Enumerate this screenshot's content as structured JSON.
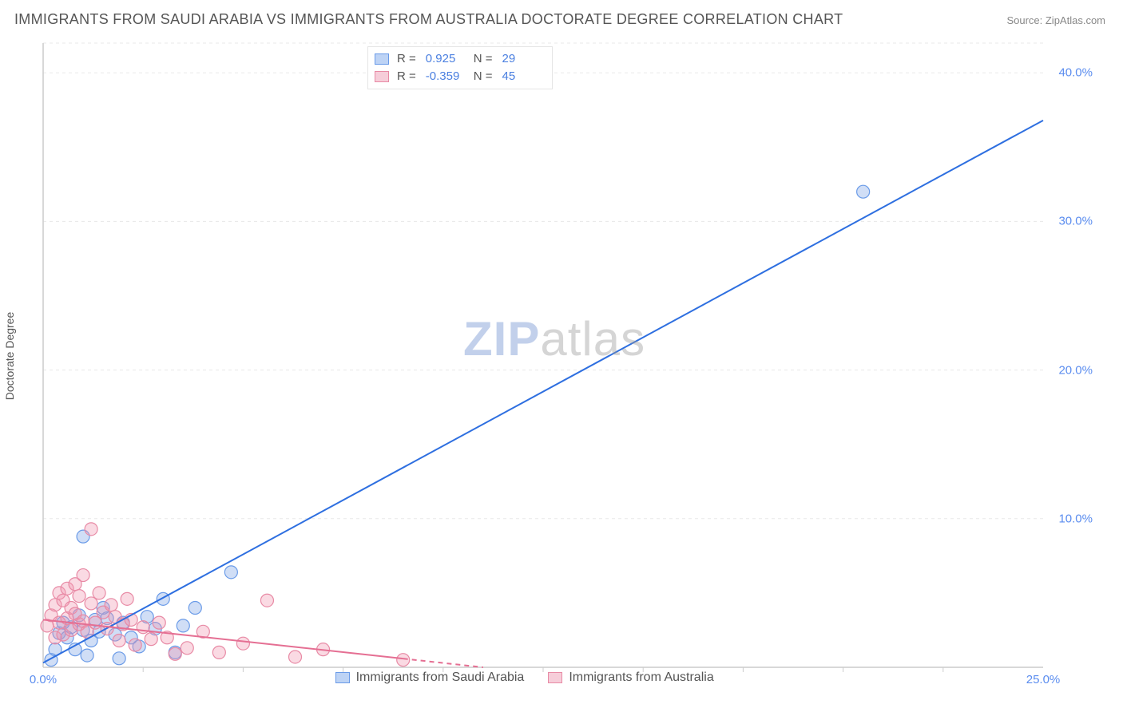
{
  "title": "IMMIGRANTS FROM SAUDI ARABIA VS IMMIGRANTS FROM AUSTRALIA DOCTORATE DEGREE CORRELATION CHART",
  "source": "Source: ZipAtlas.com",
  "y_axis_label": "Doctorate Degree",
  "watermark": {
    "zip": "ZIP",
    "atlas": "atlas"
  },
  "chart": {
    "type": "scatter-with-regression",
    "x_range": [
      0,
      25
    ],
    "y_range": [
      0,
      42
    ],
    "y_ticks": [
      10,
      20,
      30,
      40
    ],
    "y_tick_labels": [
      "10.0%",
      "20.0%",
      "30.0%",
      "40.0%"
    ],
    "x_ticks_positions": [
      0,
      25
    ],
    "x_tick_labels": [
      "0.0%",
      "25.0%"
    ],
    "x_minor_ticks": [
      2.5,
      5,
      7.5,
      10,
      12.5,
      15,
      17.5,
      20,
      22.5
    ],
    "grid_color": "#e8e8e8",
    "axis_color": "#cccccc",
    "background_color": "#ffffff",
    "marker_radius": 8,
    "marker_stroke_width": 1.2,
    "line_width": 2,
    "series": [
      {
        "name": "Immigrants from Saudi Arabia",
        "color_fill": "rgba(120,160,230,0.35)",
        "color_stroke": "#6a9be8",
        "line_color": "#2e6fe0",
        "swatch_fill": "#bdd3f5",
        "swatch_border": "#6a9be8",
        "regression": {
          "x1": 0,
          "y1": 0.3,
          "x2": 25,
          "y2": 36.8,
          "dash_from_x": 25
        },
        "points": [
          [
            0.2,
            0.5
          ],
          [
            0.3,
            1.2
          ],
          [
            0.4,
            2.3
          ],
          [
            0.5,
            3.0
          ],
          [
            0.6,
            2.0
          ],
          [
            0.7,
            2.7
          ],
          [
            0.8,
            1.2
          ],
          [
            0.9,
            3.5
          ],
          [
            1.0,
            2.5
          ],
          [
            1.0,
            8.8
          ],
          [
            1.2,
            1.8
          ],
          [
            1.3,
            3.2
          ],
          [
            1.4,
            2.4
          ],
          [
            1.5,
            4.0
          ],
          [
            1.6,
            3.3
          ],
          [
            1.8,
            2.2
          ],
          [
            1.9,
            0.6
          ],
          [
            2.0,
            3.0
          ],
          [
            2.2,
            2.0
          ],
          [
            2.4,
            1.4
          ],
          [
            2.6,
            3.4
          ],
          [
            2.8,
            2.6
          ],
          [
            3.0,
            4.6
          ],
          [
            3.3,
            1.0
          ],
          [
            3.5,
            2.8
          ],
          [
            4.7,
            6.4
          ],
          [
            3.8,
            4.0
          ],
          [
            1.1,
            0.8
          ],
          [
            20.5,
            32.0
          ]
        ]
      },
      {
        "name": "Immigrants from Australia",
        "color_fill": "rgba(240,150,175,0.35)",
        "color_stroke": "#e88aa5",
        "line_color": "#e56f93",
        "swatch_fill": "#f6cdd9",
        "swatch_border": "#e88aa5",
        "regression": {
          "x1": 0,
          "y1": 3.2,
          "x2": 11,
          "y2": 0.0,
          "dash_from_x": 9
        },
        "points": [
          [
            0.1,
            2.8
          ],
          [
            0.2,
            3.5
          ],
          [
            0.3,
            2.0
          ],
          [
            0.3,
            4.2
          ],
          [
            0.4,
            3.0
          ],
          [
            0.4,
            5.0
          ],
          [
            0.5,
            2.2
          ],
          [
            0.5,
            4.5
          ],
          [
            0.6,
            3.3
          ],
          [
            0.6,
            5.3
          ],
          [
            0.7,
            2.5
          ],
          [
            0.7,
            4.0
          ],
          [
            0.8,
            3.6
          ],
          [
            0.8,
            5.6
          ],
          [
            0.9,
            2.9
          ],
          [
            0.9,
            4.8
          ],
          [
            1.0,
            3.1
          ],
          [
            1.0,
            6.2
          ],
          [
            1.1,
            2.4
          ],
          [
            1.2,
            4.3
          ],
          [
            1.2,
            9.3
          ],
          [
            1.3,
            3.0
          ],
          [
            1.4,
            5.0
          ],
          [
            1.5,
            3.7
          ],
          [
            1.6,
            2.6
          ],
          [
            1.7,
            4.2
          ],
          [
            1.8,
            3.4
          ],
          [
            1.9,
            1.8
          ],
          [
            2.0,
            2.9
          ],
          [
            2.1,
            4.6
          ],
          [
            2.2,
            3.2
          ],
          [
            2.3,
            1.5
          ],
          [
            2.5,
            2.7
          ],
          [
            2.7,
            1.9
          ],
          [
            2.9,
            3.0
          ],
          [
            3.1,
            2.0
          ],
          [
            3.3,
            0.9
          ],
          [
            3.6,
            1.3
          ],
          [
            4.0,
            2.4
          ],
          [
            4.4,
            1.0
          ],
          [
            5.0,
            1.6
          ],
          [
            5.6,
            4.5
          ],
          [
            6.3,
            0.7
          ],
          [
            7.0,
            1.2
          ],
          [
            9.0,
            0.5
          ]
        ]
      }
    ]
  },
  "legend_top": {
    "rows": [
      {
        "swatch_series": 0,
        "r_label": "R =",
        "r_value": "0.925",
        "n_label": "N =",
        "n_value": "29"
      },
      {
        "swatch_series": 1,
        "r_label": "R =",
        "r_value": "-0.359",
        "n_label": "N =",
        "n_value": "45"
      }
    ]
  },
  "legend_bottom": {
    "items": [
      {
        "swatch_series": 0,
        "label": "Immigrants from Saudi Arabia"
      },
      {
        "swatch_series": 1,
        "label": "Immigrants from Australia"
      }
    ]
  }
}
